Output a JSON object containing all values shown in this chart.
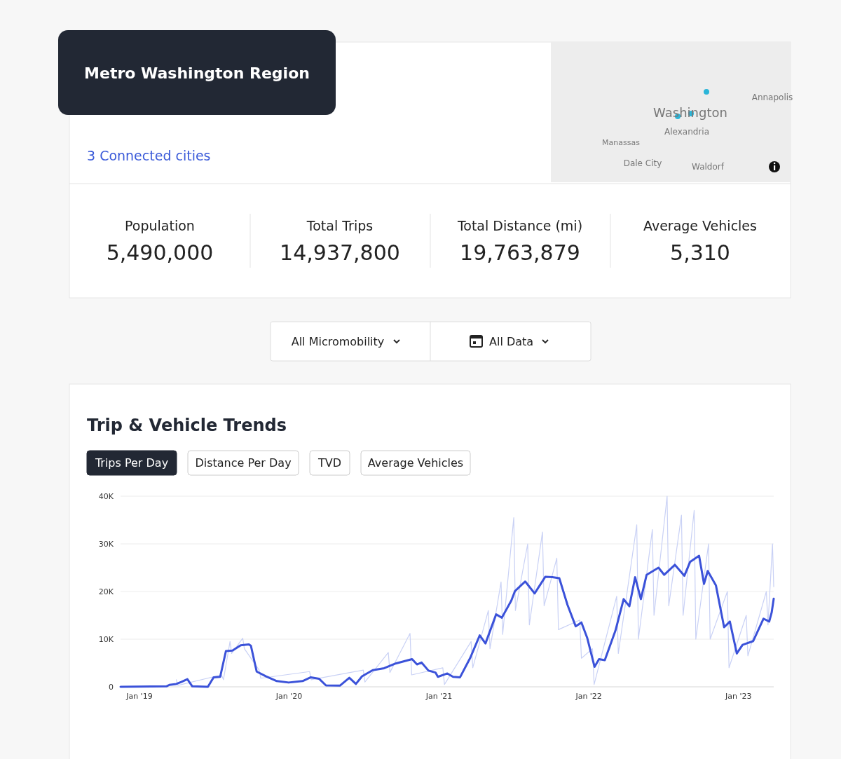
{
  "chart_data": [
    {
      "type": "other",
      "title": "Metro Washington Region",
      "annotations": [
        "3 Connected cities",
        "Population",
        "5,490,000",
        "Total Trips",
        "14,937,800",
        "Total Distance (mi)",
        "19,763,879",
        "Average Vehicles",
        "5,310",
        "Washington",
        "Alexandria",
        "Annapolis",
        "Manassas",
        "Dale City",
        "Waldorf",
        "All Micromobility",
        "All Data"
      ]
    },
    {
      "type": "line",
      "title": "Trip & Vehicle Trends",
      "annotations": [
        "Trips Per Day",
        "Distance Per Day",
        "TVD",
        "Average Vehicles"
      ],
      "xlim": [
        "2018-11-16",
        "2023-03-28"
      ],
      "xticks": [
        {
          "value": "2019-01-01",
          "label": "Jan '19"
        },
        {
          "value": "2020-01-01",
          "label": "Jan '20"
        },
        {
          "value": "2021-01-01",
          "label": "Jan '21"
        },
        {
          "value": "2022-01-01",
          "label": "Jan '22"
        },
        {
          "value": "2023-01-01",
          "label": "Jan '23"
        }
      ],
      "ylim": [
        0,
        40000
      ],
      "yticks": [
        0,
        {
          "value": 10000,
          "label": "10K"
        },
        {
          "value": 20000,
          "label": "20K"
        },
        {
          "value": 30000,
          "label": "30K"
        },
        {
          "value": 40000,
          "label": "40K"
        }
      ],
      "grid": "y",
      "series": [
        {
          "color": "#c9d1f5",
          "x": [
            "2019-04-01",
            "2019-04-05",
            "2019-07-20",
            "2019-07-25",
            "2019-08-10",
            "2019-08-14",
            "2019-09-10",
            "2019-09-14",
            "2019-10-20",
            "2019-10-24",
            "2020-02-20",
            "2020-02-24",
            "2020-06-30",
            "2020-07-04",
            "2020-08-30",
            "2020-09-03",
            "2020-10-22",
            "2020-10-26",
            "2021-01-10",
            "2021-01-14",
            "2021-03-20",
            "2021-03-24",
            "2021-05-01",
            "2021-05-05",
            "2021-06-01",
            "2021-06-05",
            "2021-07-02",
            "2021-07-06",
            "2021-08-05",
            "2021-08-09",
            "2021-09-10",
            "2021-09-14",
            "2021-10-15",
            "2021-10-19",
            "2021-12-10",
            "2021-12-14",
            "2022-01-10",
            "2022-01-14",
            "2022-03-10",
            "2022-03-14",
            "2022-04-28",
            "2022-05-02",
            "2022-06-05",
            "2022-06-09",
            "2022-07-11",
            "2022-07-15",
            "2022-08-15",
            "2022-08-19",
            "2022-09-15",
            "2022-09-19",
            "2022-10-20",
            "2022-10-24",
            "2022-12-05",
            "2022-12-09",
            "2023-01-20",
            "2023-01-24",
            "2023-03-10",
            "2023-03-14",
            "2023-03-25",
            "2023-03-28"
          ],
          "values": [
            1500,
            300,
            2500,
            1500,
            9500,
            7000,
            10200,
            8000,
            3500,
            1800,
            3200,
            1500,
            3500,
            1000,
            7200,
            3000,
            11200,
            2500,
            4000,
            500,
            9500,
            4000,
            16000,
            8000,
            22000,
            11000,
            35500,
            16000,
            30000,
            13000,
            32500,
            17000,
            27000,
            12000,
            14000,
            6000,
            8000,
            500,
            19000,
            7000,
            34000,
            10000,
            33000,
            15000,
            40000,
            17000,
            36000,
            15000,
            37000,
            10000,
            30000,
            10000,
            20000,
            4000,
            15000,
            6500,
            20000,
            13000,
            30000,
            21000
          ]
        },
        {
          "color": "#3b52d9",
          "x": [
            "2018-11-16",
            "2019-03-08",
            "2019-03-15",
            "2019-04-01",
            "2019-04-13",
            "2019-04-28",
            "2019-05-10",
            "2019-06-17",
            "2019-07-01",
            "2019-07-17",
            "2019-07-31",
            "2019-08-16",
            "2019-09-05",
            "2019-09-25",
            "2019-09-30",
            "2019-10-14",
            "2019-11-06",
            "2019-12-02",
            "2019-12-31",
            "2020-02-03",
            "2020-02-23",
            "2020-03-14",
            "2020-03-31",
            "2020-05-04",
            "2020-05-27",
            "2020-06-12",
            "2020-06-27",
            "2020-07-23",
            "2020-08-20",
            "2020-09-17",
            "2020-10-27",
            "2020-11-08",
            "2020-11-19",
            "2020-12-06",
            "2020-12-23",
            "2020-12-29",
            "2021-01-21",
            "2021-02-04",
            "2021-02-21",
            "2021-03-18",
            "2021-04-10",
            "2021-04-24",
            "2021-05-20",
            "2021-06-03",
            "2021-06-26",
            "2021-07-05",
            "2021-07-30",
            "2021-08-22",
            "2021-09-17",
            "2021-10-04",
            "2021-10-21",
            "2021-11-10",
            "2021-11-30",
            "2021-12-14",
            "2021-12-28",
            "2022-01-15",
            "2022-01-26",
            "2022-02-09",
            "2022-03-07",
            "2022-03-27",
            "2022-04-10",
            "2022-04-24",
            "2022-05-08",
            "2022-05-22",
            "2022-06-20",
            "2022-07-04",
            "2022-07-30",
            "2022-08-22",
            "2022-09-05",
            "2022-09-27",
            "2022-10-09",
            "2022-10-18",
            "2022-11-07",
            "2022-11-27",
            "2022-12-11",
            "2022-12-28",
            "2023-01-11",
            "2023-02-06",
            "2023-03-03",
            "2023-03-17",
            "2023-03-23",
            "2023-03-28"
          ],
          "values": [
            0,
            100,
            400,
            600,
            1000,
            1600,
            100,
            0,
            2000,
            2100,
            7500,
            7600,
            8700,
            8900,
            8600,
            3200,
            2200,
            1200,
            900,
            1200,
            2000,
            1700,
            300,
            250,
            1900,
            600,
            2200,
            3500,
            3900,
            4900,
            5800,
            4700,
            5100,
            3400,
            3000,
            2100,
            2800,
            2100,
            2000,
            6100,
            10800,
            9100,
            15200,
            14500,
            18100,
            20100,
            22100,
            19600,
            23100,
            23000,
            22800,
            17200,
            12700,
            13500,
            10300,
            4200,
            5800,
            5600,
            11800,
            18400,
            16900,
            23000,
            18400,
            23500,
            25000,
            23500,
            25600,
            23300,
            26200,
            27500,
            21600,
            24300,
            21300,
            12500,
            13700,
            7000,
            8800,
            9600,
            14300,
            13700,
            15600,
            18500
          ]
        }
      ]
    }
  ]
}
